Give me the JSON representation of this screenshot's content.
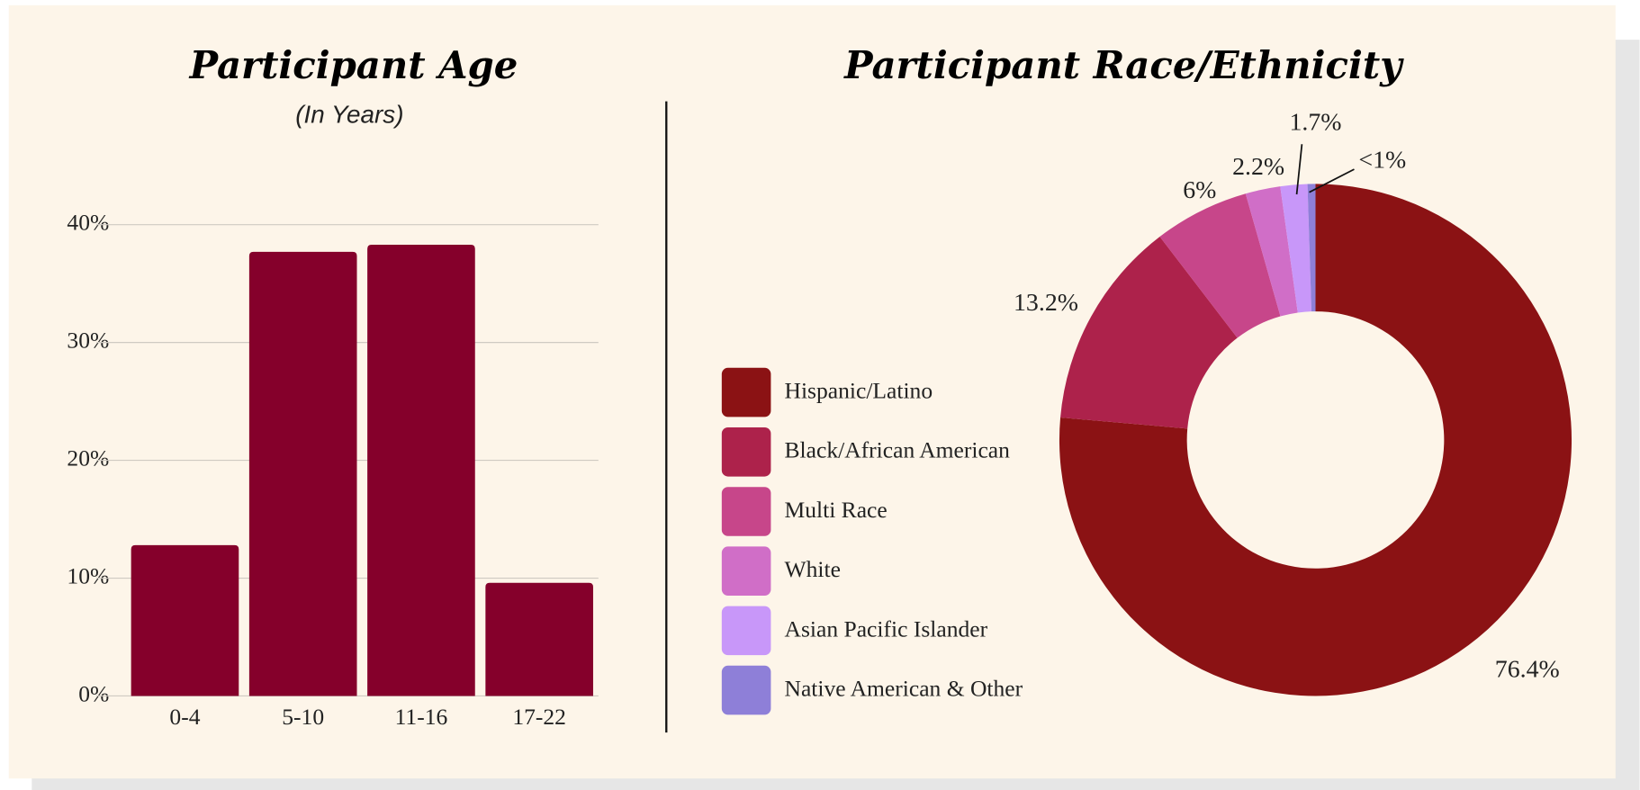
{
  "chart_data": [
    {
      "type": "bar",
      "title": "Participant Age",
      "subtitle": "(In Years)",
      "categories": [
        "0-4",
        "5-10",
        "11-16",
        "17-22"
      ],
      "values": [
        12.8,
        37.7,
        38.3,
        9.6
      ],
      "color": "#85002b",
      "ylim": [
        0,
        40
      ],
      "yticks": [
        {
          "value": 0,
          "label": "0%"
        },
        {
          "value": 10,
          "label": "10%"
        },
        {
          "value": 20,
          "label": "20%"
        },
        {
          "value": 30,
          "label": "30%"
        },
        {
          "value": 40,
          "label": "40%"
        }
      ],
      "grid": true
    },
    {
      "type": "pie",
      "title": "Participant Race/Ethnicity",
      "donut": true,
      "legend": "left",
      "categories": [
        "Hispanic/Latino",
        "Black/African American",
        "Multi Race",
        "White",
        "Asian Pacific Islander",
        "Native American & Other"
      ],
      "values": [
        76.4,
        13.2,
        6,
        2.2,
        1.7,
        0.5
      ],
      "value_labels": [
        "76.4%",
        "13.2%",
        "6%",
        "2.2%",
        "1.7%",
        "<1%"
      ],
      "colors": [
        "#8b1214",
        "#ad224b",
        "#c7468a",
        "#d06ec7",
        "#c897f9",
        "#8e7fd8"
      ]
    }
  ]
}
